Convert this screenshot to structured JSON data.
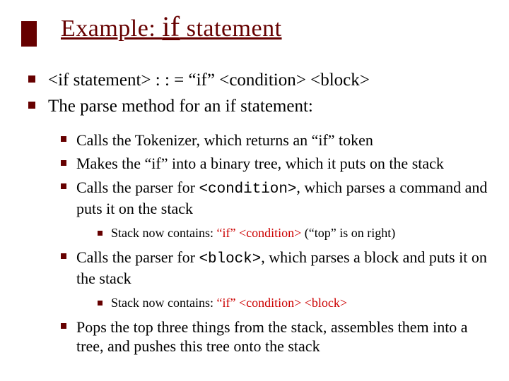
{
  "colors": {
    "accent": "#660000",
    "text": "#000000",
    "red_highlight": "#cc0000",
    "background": "#ffffff"
  },
  "typography": {
    "title_fontsize_pt": 34,
    "level0_fontsize_pt": 25,
    "level1_fontsize_pt": 22,
    "level2_fontsize_pt": 18,
    "font_family": "Times New Roman",
    "mono_family": "Lucida Console"
  },
  "title": {
    "part1": "Example: ",
    "if_word": "if",
    "part2": " statement"
  },
  "bullets": {
    "l0_0": "<if statement> : : = “if” <condition> <block>",
    "l0_1": "The parse method for an if statement:",
    "l1_0": "Calls the Tokenizer, which returns an “if” token",
    "l1_1": "Makes the “if” into a binary tree, which it puts on the stack",
    "l1_2_a": "Calls the parser for ",
    "l1_2_mono": "<condition>",
    "l1_2_b": ", which parses a command and puts it on the stack",
    "l2_0_a": "Stack now contains:    ",
    "l2_0_red": "“if” <condition>",
    "l2_0_b": " (“top” is on right)",
    "l1_3_a": "Calls the parser for ",
    "l1_3_mono": "<block>",
    "l1_3_b": ", which parses a block and puts it on the stack",
    "l2_1_a": "Stack now contains:    ",
    "l2_1_red": "“if” <condition> <block>",
    "l1_4": "Pops the top three things from the stack, assembles them into a tree, and pushes this tree onto the stack"
  }
}
